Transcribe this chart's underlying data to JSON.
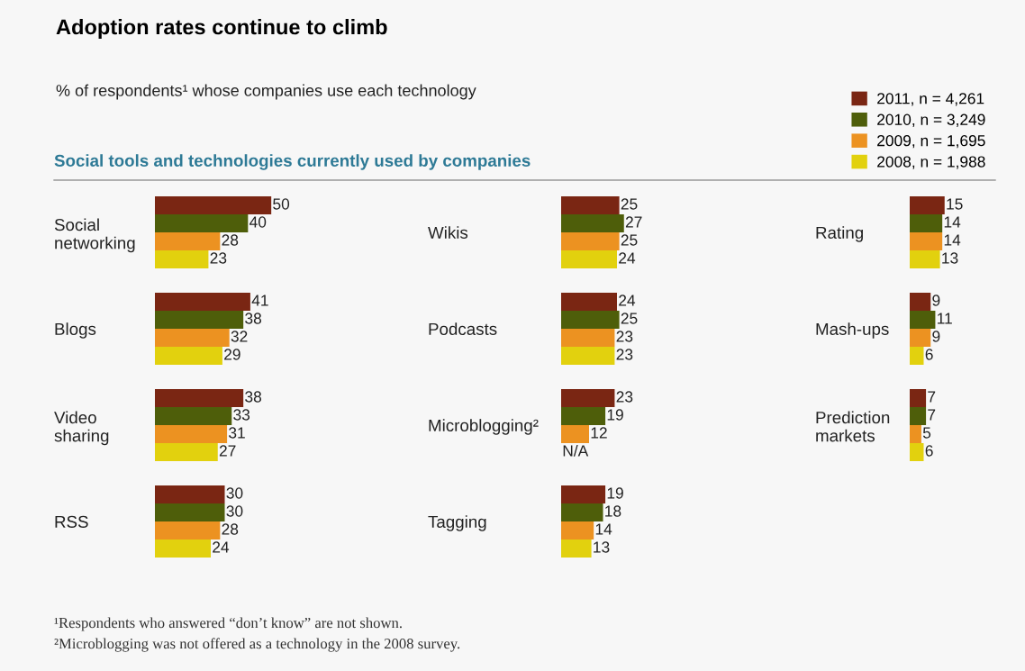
{
  "chart_data": [
    {
      "type": "bar",
      "orientation": "horizontal",
      "title": "Adoption rates continue to climb",
      "subtitle": "% of respondents¹ whose companies use each technology",
      "annotations": [
        "Social tools and technologies currently used by companies",
        "¹Respondents who answered “don’t know” are not shown.",
        "²Microblogging was not offered as a technology in the 2008 survey."
      ],
      "legend": "top right",
      "categories": [
        "Social\nnetworking"
      ],
      "tick_labels": "y",
      "data_labels": true,
      "series": [
        {
          "name": "2011, n = 4,261",
          "color": "#7a2613",
          "values": [
            50
          ]
        },
        {
          "name": "2010, n = 3,249",
          "color": "#4e5e0a",
          "values": [
            40
          ]
        },
        {
          "name": "2009, n = 1,695",
          "color": "#ec9221",
          "values": [
            28
          ]
        },
        {
          "name": "2008, n = 1,988",
          "color": "#e2d10e",
          "values": [
            23
          ]
        }
      ]
    },
    {
      "type": "bar",
      "orientation": "horizontal",
      "categories": [
        "Wikis"
      ],
      "tick_labels": "y",
      "data_labels": true,
      "series": [
        {
          "color": "#7a2613",
          "values": [
            25
          ]
        },
        {
          "color": "#4e5e0a",
          "values": [
            27
          ]
        },
        {
          "color": "#ec9221",
          "values": [
            25
          ]
        },
        {
          "color": "#e2d10e",
          "values": [
            24
          ]
        }
      ]
    },
    {
      "type": "bar",
      "orientation": "horizontal",
      "categories": [
        "Rating"
      ],
      "tick_labels": "y",
      "data_labels": true,
      "series": [
        {
          "color": "#7a2613",
          "values": [
            15
          ]
        },
        {
          "color": "#4e5e0a",
          "values": [
            14
          ]
        },
        {
          "color": "#ec9221",
          "values": [
            14
          ]
        },
        {
          "color": "#e2d10e",
          "values": [
            13
          ]
        }
      ]
    },
    {
      "type": "bar",
      "orientation": "horizontal",
      "categories": [
        "Blogs"
      ],
      "tick_labels": "y",
      "data_labels": true,
      "series": [
        {
          "color": "#7a2613",
          "values": [
            41
          ]
        },
        {
          "color": "#4e5e0a",
          "values": [
            38
          ]
        },
        {
          "color": "#ec9221",
          "values": [
            32
          ]
        },
        {
          "color": "#e2d10e",
          "values": [
            29
          ]
        }
      ]
    },
    {
      "type": "bar",
      "orientation": "horizontal",
      "categories": [
        "Podcasts"
      ],
      "tick_labels": "y",
      "data_labels": true,
      "series": [
        {
          "color": "#7a2613",
          "values": [
            24
          ]
        },
        {
          "color": "#4e5e0a",
          "values": [
            25
          ]
        },
        {
          "color": "#ec9221",
          "values": [
            23
          ]
        },
        {
          "color": "#e2d10e",
          "values": [
            23
          ]
        }
      ]
    },
    {
      "type": "bar",
      "orientation": "horizontal",
      "categories": [
        "Mash-ups"
      ],
      "tick_labels": "y",
      "data_labels": true,
      "series": [
        {
          "color": "#7a2613",
          "values": [
            9
          ]
        },
        {
          "color": "#4e5e0a",
          "values": [
            11
          ]
        },
        {
          "color": "#ec9221",
          "values": [
            9
          ]
        },
        {
          "color": "#e2d10e",
          "values": [
            6
          ]
        }
      ]
    },
    {
      "type": "bar",
      "orientation": "horizontal",
      "categories": [
        "Video\nsharing"
      ],
      "tick_labels": "y",
      "data_labels": true,
      "series": [
        {
          "color": "#7a2613",
          "values": [
            38
          ]
        },
        {
          "color": "#4e5e0a",
          "values": [
            33
          ]
        },
        {
          "color": "#ec9221",
          "values": [
            31
          ]
        },
        {
          "color": "#e2d10e",
          "values": [
            27
          ]
        }
      ]
    },
    {
      "type": "bar",
      "orientation": "horizontal",
      "categories": [
        "Microblogging²"
      ],
      "tick_labels": "y",
      "data_labels": true,
      "series": [
        {
          "color": "#7a2613",
          "values": [
            23
          ]
        },
        {
          "color": "#4e5e0a",
          "values": [
            19
          ]
        },
        {
          "color": "#ec9221",
          "values": [
            12
          ]
        },
        {
          "values": [
            null
          ],
          "value_labels": [
            "N/A"
          ]
        }
      ]
    },
    {
      "type": "bar",
      "orientation": "horizontal",
      "categories": [
        "Prediction\nmarkets"
      ],
      "tick_labels": "y",
      "data_labels": true,
      "series": [
        {
          "color": "#7a2613",
          "values": [
            7
          ]
        },
        {
          "color": "#4e5e0a",
          "values": [
            7
          ]
        },
        {
          "color": "#ec9221",
          "values": [
            5
          ]
        },
        {
          "color": "#e2d10e",
          "values": [
            6
          ]
        }
      ]
    },
    {
      "type": "bar",
      "orientation": "horizontal",
      "categories": [
        "RSS"
      ],
      "tick_labels": "y",
      "data_labels": true,
      "series": [
        {
          "color": "#7a2613",
          "values": [
            30
          ]
        },
        {
          "color": "#4e5e0a",
          "values": [
            30
          ]
        },
        {
          "color": "#ec9221",
          "values": [
            28
          ]
        },
        {
          "color": "#e2d10e",
          "values": [
            24
          ]
        }
      ]
    },
    {
      "type": "bar",
      "orientation": "horizontal",
      "categories": [
        "Tagging"
      ],
      "tick_labels": "y",
      "data_labels": true,
      "series": [
        {
          "color": "#7a2613",
          "values": [
            19
          ]
        },
        {
          "color": "#4e5e0a",
          "values": [
            18
          ]
        },
        {
          "color": "#ec9221",
          "values": [
            14
          ]
        },
        {
          "color": "#e2d10e",
          "values": [
            13
          ]
        }
      ]
    }
  ]
}
